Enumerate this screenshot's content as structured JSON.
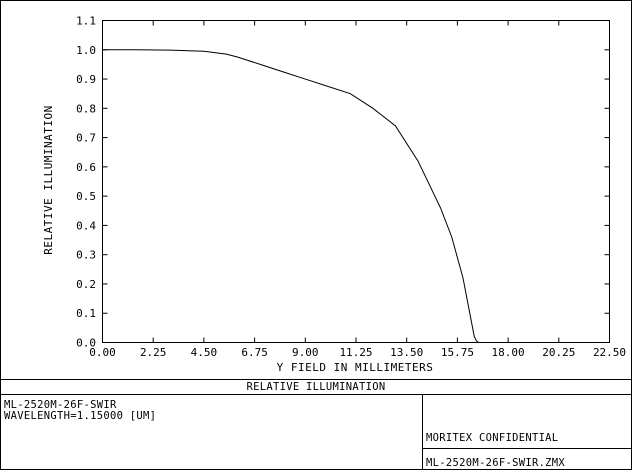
{
  "chart_data": {
    "type": "line",
    "title": "RELATIVE ILLUMINATION",
    "xlabel": "Y FIELD IN MILLIMETERS",
    "ylabel": "RELATIVE ILLUMINATION",
    "xlim": [
      0,
      22.5
    ],
    "ylim": [
      0,
      1.1
    ],
    "x_ticks": [
      "0.00",
      "2.25",
      "4.50",
      "6.75",
      "9.00",
      "11.25",
      "13.50",
      "15.75",
      "18.00",
      "20.25",
      "22.50"
    ],
    "y_ticks": [
      "0.0",
      "0.1",
      "0.2",
      "0.3",
      "0.4",
      "0.5",
      "0.6",
      "0.7",
      "0.8",
      "0.9",
      "1.0",
      "1.1"
    ],
    "grid": false,
    "series": [
      {
        "x": [
          0,
          1.5,
          3.0,
          4.5,
          5.5,
          6.0,
          7.0,
          8.0,
          9.0,
          10.0,
          11.0,
          12.0,
          13.0,
          13.5,
          14.0,
          14.5,
          15.0,
          15.5,
          16.0,
          16.3,
          16.5,
          16.6,
          16.7,
          17.0,
          22.5
        ],
        "y": [
          1.0,
          1.0,
          0.999,
          0.995,
          0.985,
          0.975,
          0.95,
          0.925,
          0.9,
          0.875,
          0.85,
          0.8,
          0.74,
          0.68,
          0.62,
          0.54,
          0.46,
          0.36,
          0.22,
          0.1,
          0.02,
          0.005,
          0.0,
          0.0,
          0.0
        ]
      }
    ]
  },
  "footer": {
    "title": "RELATIVE ILLUMINATION",
    "lens_name": "ML-2520M-26F-SWIR",
    "wavelength": "WAVELENGTH=1.15000 [UM]",
    "confidential": "MORITEX CONFIDENTIAL",
    "file_name": "ML-2520M-26F-SWIR.ZMX"
  }
}
